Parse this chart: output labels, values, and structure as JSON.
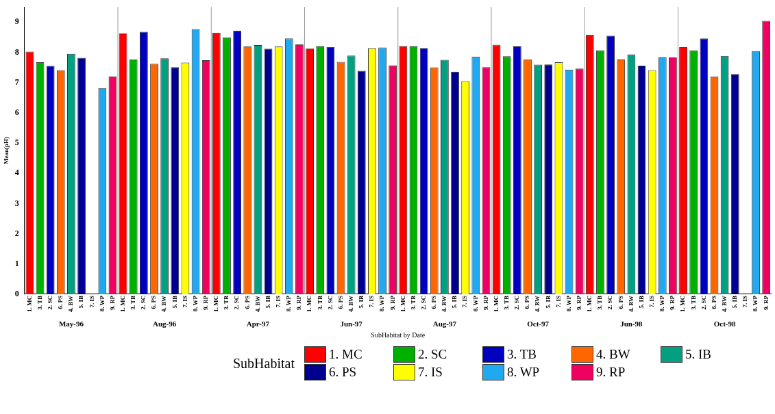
{
  "chart_data": {
    "type": "bar",
    "xlabel": "SubHabitat by Date",
    "ylabel": "Mean(pH)",
    "legend_title": "SubHabitat",
    "legend": "bottom",
    "grid": false,
    "categories": [
      "1. MC",
      "3. TB",
      "2. SC",
      "6. PS",
      "4. BW",
      "5. IB",
      "7. IS",
      "8. WP",
      "9. RP",
      "1. MC",
      "3. TB",
      "2. SC",
      "6. PS",
      "4. BW",
      "5. IB",
      "7. IS",
      "8. WP",
      "9. RP",
      "1. MC",
      "3. TB",
      "2. SC",
      "6. PS",
      "4. BW",
      "5. IB",
      "7. IS",
      "8. WP",
      "9. RP",
      "1. MC",
      "3. TB",
      "2. SC",
      "6. PS",
      "4. BW",
      "5. IB",
      "7. IS",
      "8. WP",
      "9. RP",
      "1. MC",
      "3. TB",
      "2. SC",
      "6. PS",
      "4. BW",
      "5. IB",
      "7. IS",
      "8. WP",
      "9. RP",
      "1. MC",
      "3. TB",
      "2. SC",
      "6. PS",
      "4. BW",
      "5. IB",
      "7. IS",
      "8. WP",
      "9. RP",
      "1. MC",
      "3. TB",
      "2. SC",
      "6. PS",
      "4. BW",
      "5. IB",
      "7. IS",
      "8. WP",
      "9. RP",
      "1. MC",
      "3. TB",
      "2. SC",
      "6. PS",
      "4. BW",
      "5. IB",
      "7. IS",
      "8. WP",
      "9. RP"
    ],
    "annotations": [
      "May-96",
      "Aug-96",
      "Apr-97",
      "Jun-97",
      "Aug-97",
      "Oct-97",
      "Jun-98",
      "Oct-98"
    ],
    "ylim": [
      0,
      9.5
    ],
    "yticks": [
      0,
      1,
      2,
      3,
      4,
      5,
      6,
      7,
      8,
      9
    ],
    "series": [
      {
        "name": "1. MC",
        "color": "#ff0000",
        "values": [
          8.02,
          null,
          null,
          null,
          null,
          null,
          null,
          null,
          null,
          8.62,
          null,
          null,
          null,
          null,
          null,
          null,
          null,
          null,
          8.65,
          null,
          null,
          null,
          null,
          null,
          null,
          null,
          null,
          8.13,
          null,
          null,
          null,
          null,
          null,
          null,
          null,
          null,
          8.21,
          null,
          null,
          null,
          null,
          null,
          null,
          null,
          null,
          8.25,
          null,
          null,
          null,
          null,
          null,
          null,
          null,
          null,
          8.58,
          null,
          null,
          null,
          null,
          null,
          null,
          null,
          null,
          8.17,
          null,
          null,
          null,
          null,
          null,
          null,
          null,
          null
        ]
      },
      {
        "name": "2. SC",
        "color": "#00b000",
        "values": [
          null,
          7.67,
          null,
          null,
          null,
          null,
          null,
          null,
          null,
          null,
          7.77,
          null,
          null,
          null,
          null,
          null,
          null,
          null,
          null,
          8.5,
          null,
          null,
          null,
          null,
          null,
          null,
          null,
          null,
          8.21,
          null,
          null,
          null,
          null,
          null,
          null,
          null,
          null,
          8.21,
          null,
          null,
          null,
          null,
          null,
          null,
          null,
          null,
          7.87,
          null,
          null,
          null,
          null,
          null,
          null,
          null,
          null,
          8.07,
          null,
          null,
          null,
          null,
          null,
          null,
          null,
          null,
          8.07,
          null,
          null,
          null,
          null,
          null,
          null,
          null
        ]
      },
      {
        "name": "3. TB",
        "color": "#0000c0",
        "values": [
          null,
          null,
          7.55,
          null,
          null,
          null,
          null,
          null,
          null,
          null,
          null,
          8.68,
          null,
          null,
          null,
          null,
          null,
          null,
          null,
          null,
          8.72,
          null,
          null,
          null,
          null,
          null,
          null,
          null,
          null,
          8.17,
          null,
          null,
          null,
          null,
          null,
          null,
          null,
          null,
          8.14,
          null,
          null,
          null,
          null,
          null,
          null,
          null,
          null,
          8.21,
          null,
          null,
          null,
          null,
          null,
          null,
          null,
          null,
          8.55,
          null,
          null,
          null,
          null,
          null,
          null,
          null,
          null,
          8.46,
          null,
          null,
          null,
          null,
          null,
          null
        ]
      },
      {
        "name": "4. BW",
        "color": "#ff6600",
        "values": [
          null,
          null,
          null,
          7.41,
          null,
          null,
          null,
          null,
          null,
          null,
          null,
          null,
          7.62,
          null,
          null,
          null,
          null,
          null,
          null,
          null,
          null,
          8.19,
          null,
          null,
          null,
          null,
          null,
          null,
          null,
          null,
          7.68,
          null,
          null,
          null,
          null,
          null,
          null,
          null,
          null,
          7.5,
          null,
          null,
          null,
          null,
          null,
          null,
          null,
          null,
          7.77,
          null,
          null,
          null,
          null,
          null,
          null,
          null,
          null,
          7.76,
          null,
          null,
          null,
          null,
          null,
          null,
          null,
          null,
          7.2,
          null,
          null,
          null,
          null,
          null
        ]
      },
      {
        "name": "5. IB",
        "color": "#00a080",
        "values": [
          null,
          null,
          null,
          null,
          7.95,
          null,
          null,
          null,
          null,
          null,
          null,
          null,
          null,
          7.8,
          null,
          null,
          null,
          null,
          null,
          null,
          null,
          null,
          8.24,
          null,
          null,
          null,
          null,
          null,
          null,
          null,
          null,
          7.89,
          null,
          null,
          null,
          null,
          null,
          null,
          null,
          null,
          7.75,
          null,
          null,
          null,
          null,
          null,
          null,
          null,
          null,
          7.59,
          null,
          null,
          null,
          null,
          null,
          null,
          null,
          null,
          7.93,
          null,
          null,
          null,
          null,
          null,
          null,
          null,
          null,
          7.88,
          null,
          null,
          null,
          null
        ]
      },
      {
        "name": "6. PS",
        "color": "#000090",
        "values": [
          null,
          null,
          null,
          null,
          null,
          7.82,
          null,
          null,
          null,
          null,
          null,
          null,
          null,
          null,
          7.51,
          null,
          null,
          null,
          null,
          null,
          null,
          null,
          null,
          8.12,
          null,
          null,
          null,
          null,
          null,
          null,
          null,
          null,
          7.39,
          null,
          null,
          null,
          null,
          null,
          null,
          null,
          null,
          7.36,
          null,
          null,
          null,
          null,
          null,
          null,
          null,
          null,
          7.6,
          null,
          null,
          null,
          null,
          null,
          null,
          null,
          null,
          7.56,
          null,
          null,
          null,
          null,
          null,
          null,
          null,
          null,
          7.28,
          null,
          null,
          null
        ]
      },
      {
        "name": "7. IS",
        "color": "#ffff00",
        "values": [
          null,
          null,
          null,
          null,
          null,
          null,
          null,
          null,
          null,
          null,
          null,
          null,
          null,
          null,
          null,
          7.66,
          null,
          null,
          null,
          null,
          null,
          null,
          null,
          null,
          8.19,
          null,
          null,
          null,
          null,
          null,
          null,
          null,
          null,
          8.14,
          null,
          null,
          null,
          null,
          null,
          null,
          null,
          null,
          7.05,
          null,
          null,
          null,
          null,
          null,
          null,
          null,
          null,
          7.67,
          null,
          null,
          null,
          null,
          null,
          null,
          null,
          null,
          7.41,
          null,
          null,
          null,
          null,
          null,
          null,
          null,
          null,
          null,
          null,
          null
        ]
      },
      {
        "name": "8. WP",
        "color": "#20a8f0",
        "values": [
          null,
          null,
          null,
          null,
          null,
          null,
          null,
          6.82,
          null,
          null,
          null,
          null,
          null,
          null,
          null,
          null,
          8.77,
          null,
          null,
          null,
          null,
          null,
          null,
          null,
          null,
          8.46,
          null,
          null,
          null,
          null,
          null,
          null,
          null,
          null,
          8.16,
          null,
          null,
          null,
          null,
          null,
          null,
          null,
          null,
          7.86,
          null,
          null,
          null,
          null,
          null,
          null,
          null,
          null,
          7.43,
          null,
          null,
          null,
          null,
          null,
          null,
          null,
          null,
          7.83,
          null,
          null,
          null,
          null,
          null,
          null,
          null,
          null,
          8.04,
          null
        ]
      },
      {
        "name": "9. RP",
        "color": "#f00060",
        "values": [
          null,
          null,
          null,
          null,
          null,
          null,
          null,
          null,
          7.21,
          null,
          null,
          null,
          null,
          null,
          null,
          null,
          null,
          7.74,
          null,
          null,
          null,
          null,
          null,
          null,
          null,
          null,
          8.26,
          null,
          null,
          null,
          null,
          null,
          null,
          null,
          null,
          7.57,
          null,
          null,
          null,
          null,
          null,
          null,
          null,
          null,
          7.51,
          null,
          null,
          null,
          null,
          null,
          null,
          null,
          null,
          7.46,
          null,
          null,
          null,
          null,
          null,
          null,
          null,
          null,
          7.83,
          null,
          null,
          null,
          null,
          null,
          null,
          null,
          null,
          9.04
        ]
      }
    ]
  }
}
